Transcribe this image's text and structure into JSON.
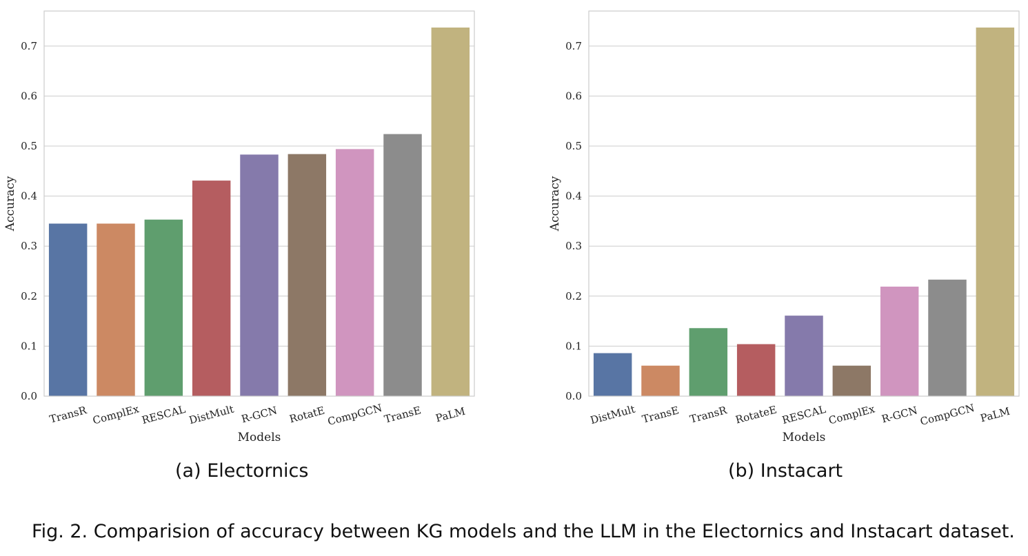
{
  "chart_data": [
    {
      "type": "bar",
      "xlabel": "Models",
      "ylabel": "Accuracy",
      "ylim": [
        0,
        0.77
      ],
      "yticks": [
        "0.0",
        "0.1",
        "0.2",
        "0.3",
        "0.4",
        "0.5",
        "0.6",
        "0.7"
      ],
      "grid": "horizontal",
      "categories": [
        "TransR",
        "ComplEx",
        "RESCAL",
        "DistMult",
        "R-GCN",
        "RotatE",
        "CompGCN",
        "TransE",
        "PaLM"
      ],
      "values": [
        0.345,
        0.345,
        0.353,
        0.431,
        0.483,
        0.484,
        0.494,
        0.524,
        0.737
      ],
      "colors": [
        "#5875a4",
        "#cc8963",
        "#5f9e6e",
        "#b55d60",
        "#857aab",
        "#8d7866",
        "#d095bf",
        "#8c8c8c",
        "#c1b37f"
      ]
    },
    {
      "type": "bar",
      "xlabel": "Models",
      "ylabel": "Accuracy",
      "ylim": [
        0,
        0.77
      ],
      "yticks": [
        "0.0",
        "0.1",
        "0.2",
        "0.3",
        "0.4",
        "0.5",
        "0.6",
        "0.7"
      ],
      "grid": "horizontal",
      "categories": [
        "DistMult",
        "TransE",
        "TransR",
        "RotateE",
        "RESCAL",
        "ComplEx",
        "R-GCN",
        "CompGCN",
        "PaLM"
      ],
      "values": [
        0.086,
        0.061,
        0.136,
        0.104,
        0.161,
        0.061,
        0.219,
        0.233,
        0.737
      ],
      "colors": [
        "#5875a4",
        "#cc8963",
        "#5f9e6e",
        "#b55d60",
        "#857aab",
        "#8d7866",
        "#d095bf",
        "#8c8c8c",
        "#c1b37f"
      ]
    }
  ],
  "captions": {
    "a": "(a) Electornics",
    "b": "(b) Instacart",
    "figure": "Fig. 2.  Comparision of accuracy between KG models and the LLM in the Electornics and Instacart dataset."
  }
}
